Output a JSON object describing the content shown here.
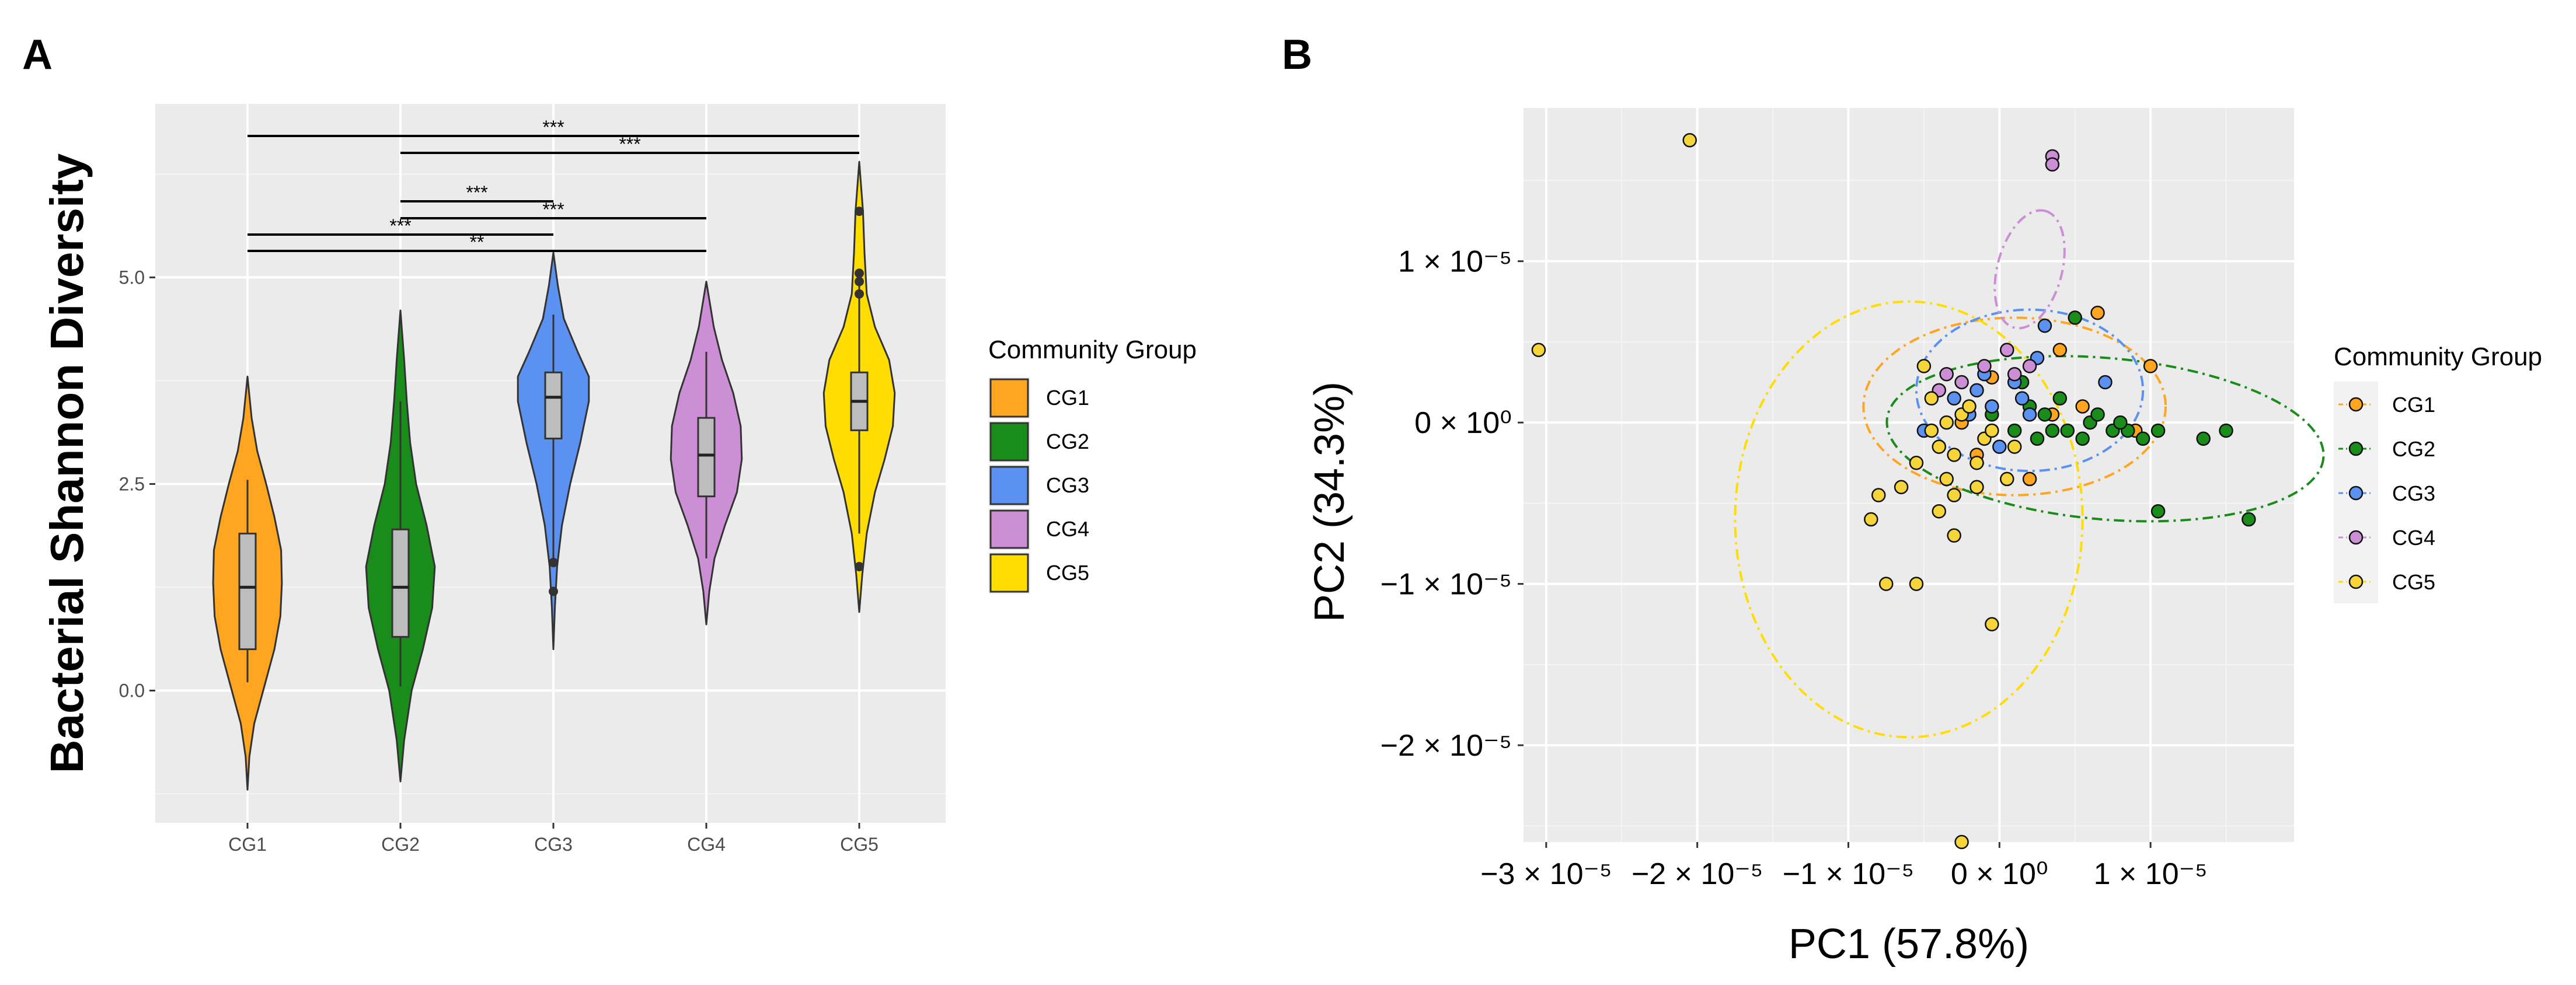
{
  "chart_data": [
    {
      "panel": "A",
      "type": "violin",
      "title": "",
      "xlabel": "",
      "ylabel": "Bacterial Shannon Diversity",
      "categories": [
        "CG1",
        "CG2",
        "CG3",
        "CG4",
        "CG5"
      ],
      "colors": [
        "#FFA51F",
        "#1A8C1A",
        "#5B91F0",
        "#CC8FD6",
        "#FFDD00"
      ],
      "ylim": [
        -1.6,
        7.1
      ],
      "yticks": [
        0.0,
        2.5,
        5.0
      ],
      "ytick_labels": [
        "0.0",
        "2.5",
        "5.0"
      ],
      "series": [
        {
          "name": "CG1",
          "box": {
            "whisker_low": 0.1,
            "q1": 0.5,
            "median": 1.25,
            "q3": 1.9,
            "whisker_high": 2.55
          },
          "outliers": [],
          "density": [
            [
              -1.2,
              0.0
            ],
            [
              -0.8,
              0.05
            ],
            [
              -0.4,
              0.18
            ],
            [
              0.0,
              0.42
            ],
            [
              0.5,
              0.72
            ],
            [
              0.9,
              0.88
            ],
            [
              1.3,
              0.92
            ],
            [
              1.7,
              0.9
            ],
            [
              2.1,
              0.72
            ],
            [
              2.5,
              0.5
            ],
            [
              2.9,
              0.26
            ],
            [
              3.3,
              0.11
            ],
            [
              3.8,
              0.0
            ]
          ]
        },
        {
          "name": "CG2",
          "box": {
            "whisker_low": 0.05,
            "q1": 0.65,
            "median": 1.25,
            "q3": 1.95,
            "whisker_high": 3.5
          },
          "outliers": [],
          "density": [
            [
              -1.1,
              0.0
            ],
            [
              -0.6,
              0.1
            ],
            [
              0.0,
              0.3
            ],
            [
              0.5,
              0.6
            ],
            [
              1.0,
              0.85
            ],
            [
              1.5,
              0.92
            ],
            [
              2.0,
              0.7
            ],
            [
              2.5,
              0.42
            ],
            [
              3.0,
              0.26
            ],
            [
              3.5,
              0.17
            ],
            [
              4.0,
              0.1
            ],
            [
              4.6,
              0.0
            ]
          ]
        },
        {
          "name": "CG3",
          "box": {
            "whisker_low": 1.6,
            "q1": 3.05,
            "median": 3.55,
            "q3": 3.85,
            "whisker_high": 4.55
          },
          "outliers": [
            1.55,
            1.2
          ],
          "density": [
            [
              0.5,
              0.0
            ],
            [
              1.0,
              0.04
            ],
            [
              1.5,
              0.1
            ],
            [
              2.0,
              0.23
            ],
            [
              2.5,
              0.45
            ],
            [
              3.0,
              0.72
            ],
            [
              3.5,
              0.95
            ],
            [
              3.8,
              0.95
            ],
            [
              4.1,
              0.65
            ],
            [
              4.5,
              0.28
            ],
            [
              4.9,
              0.12
            ],
            [
              5.3,
              0.0
            ]
          ]
        },
        {
          "name": "CG4",
          "box": {
            "whisker_low": 1.6,
            "q1": 2.35,
            "median": 2.85,
            "q3": 3.3,
            "whisker_high": 4.1
          },
          "outliers": [],
          "density": [
            [
              0.8,
              0.0
            ],
            [
              1.2,
              0.08
            ],
            [
              1.6,
              0.22
            ],
            [
              2.0,
              0.5
            ],
            [
              2.4,
              0.82
            ],
            [
              2.8,
              0.95
            ],
            [
              3.2,
              0.92
            ],
            [
              3.6,
              0.72
            ],
            [
              4.0,
              0.42
            ],
            [
              4.4,
              0.2
            ],
            [
              4.95,
              0.0
            ]
          ]
        },
        {
          "name": "CG5",
          "box": {
            "whisker_low": 1.9,
            "q1": 3.15,
            "median": 3.5,
            "q3": 3.85,
            "whisker_high": 4.9
          },
          "outliers": [
            1.5,
            4.8,
            4.95,
            5.05,
            5.8
          ],
          "density": [
            [
              0.95,
              0.0
            ],
            [
              1.4,
              0.08
            ],
            [
              1.9,
              0.2
            ],
            [
              2.4,
              0.42
            ],
            [
              2.8,
              0.68
            ],
            [
              3.2,
              0.9
            ],
            [
              3.6,
              0.95
            ],
            [
              4.0,
              0.8
            ],
            [
              4.4,
              0.42
            ],
            [
              4.8,
              0.2
            ],
            [
              5.3,
              0.14
            ],
            [
              5.8,
              0.1
            ],
            [
              6.4,
              0.0
            ]
          ]
        }
      ],
      "significance": [
        {
          "from": "CG1",
          "to": "CG5",
          "label": "***"
        },
        {
          "from": "CG2",
          "to": "CG5",
          "label": "***"
        },
        {
          "from": "CG2",
          "to": "CG3",
          "label": "***"
        },
        {
          "from": "CG2",
          "to": "CG4",
          "label": "***"
        },
        {
          "from": "CG1",
          "to": "CG3",
          "label": "***"
        },
        {
          "from": "CG1",
          "to": "CG4",
          "label": "**"
        }
      ],
      "legend": {
        "title": "Community Group",
        "position": "right",
        "entries": [
          "CG1",
          "CG2",
          "CG3",
          "CG4",
          "CG5"
        ]
      }
    },
    {
      "panel": "B",
      "type": "scatter",
      "title": "",
      "xlabel": "PC1 (57.8%)",
      "ylabel": "PC2 (34.3%)",
      "xlim": [
        -3.15,
        1.95
      ],
      "ylim": [
        -2.6,
        1.95
      ],
      "xticks": [
        -3,
        -2,
        -1,
        0,
        1
      ],
      "xtick_labels": [
        "−3 × 10⁻⁵",
        "−2 × 10⁻⁵",
        "−1 × 10⁻⁵",
        "0 × 10⁰",
        "1 × 10⁻⁵"
      ],
      "yticks": [
        -2,
        -1,
        0,
        1
      ],
      "ytick_labels": [
        "−2 × 10⁻⁵",
        "−1 × 10⁻⁵",
        "0 × 10⁰",
        "1 × 10⁻⁵"
      ],
      "units_note": "axis values in units of 1e-5",
      "ellipses": [
        {
          "group": "CG1",
          "cx": 0.1,
          "cy": 0.1,
          "rx": 1.0,
          "ry": 0.55,
          "angle": 0
        },
        {
          "group": "CG2",
          "cx": 0.7,
          "cy": -0.1,
          "rx": 1.45,
          "ry": 0.5,
          "angle": 5
        },
        {
          "group": "CG3",
          "cx": 0.2,
          "cy": 0.2,
          "rx": 0.75,
          "ry": 0.5,
          "angle": 0
        },
        {
          "group": "CG4",
          "cx": 0.2,
          "cy": 0.95,
          "rx": 0.4,
          "ry": 0.2,
          "angle": -75
        },
        {
          "group": "CG5",
          "cx": -0.6,
          "cy": -0.6,
          "rx": 1.15,
          "ry": 1.35,
          "angle": 0
        }
      ],
      "series": [
        {
          "name": "CG1",
          "points": [
            [
              0.65,
              0.68
            ],
            [
              0.4,
              0.45
            ],
            [
              -0.25,
              0.0
            ],
            [
              0.2,
              -0.35
            ],
            [
              0.9,
              -0.05
            ],
            [
              0.55,
              0.1
            ],
            [
              -0.05,
              0.28
            ],
            [
              1.0,
              0.35
            ],
            [
              0.35,
              0.05
            ],
            [
              -0.15,
              -0.2
            ]
          ]
        },
        {
          "name": "CG2",
          "points": [
            [
              0.3,
              0.05
            ],
            [
              0.45,
              -0.05
            ],
            [
              0.6,
              0.0
            ],
            [
              0.75,
              -0.05
            ],
            [
              0.85,
              -0.05
            ],
            [
              0.95,
              -0.1
            ],
            [
              1.05,
              -0.05
            ],
            [
              1.35,
              -0.1
            ],
            [
              1.5,
              -0.05
            ],
            [
              1.65,
              -0.6
            ],
            [
              1.05,
              -0.55
            ],
            [
              0.5,
              0.65
            ],
            [
              0.2,
              0.1
            ],
            [
              0.1,
              -0.05
            ],
            [
              0.4,
              0.15
            ],
            [
              0.65,
              0.05
            ],
            [
              0.25,
              -0.1
            ],
            [
              0.55,
              -0.1
            ],
            [
              0.8,
              0.0
            ],
            [
              -0.05,
              0.05
            ],
            [
              0.15,
              0.25
            ],
            [
              0.35,
              -0.05
            ]
          ]
        },
        {
          "name": "CG3",
          "points": [
            [
              0.3,
              0.6
            ],
            [
              -0.5,
              -0.05
            ],
            [
              0.7,
              0.25
            ],
            [
              0.1,
              0.25
            ],
            [
              -0.05,
              0.1
            ],
            [
              0.2,
              0.05
            ],
            [
              -0.3,
              0.15
            ],
            [
              0.0,
              -0.15
            ],
            [
              -0.1,
              0.3
            ],
            [
              -0.2,
              0.05
            ],
            [
              0.25,
              0.4
            ],
            [
              0.05,
              0.45
            ],
            [
              -0.15,
              0.2
            ],
            [
              0.15,
              0.15
            ]
          ]
        },
        {
          "name": "CG4",
          "points": [
            [
              0.35,
              1.65
            ],
            [
              0.35,
              1.6
            ],
            [
              0.05,
              0.45
            ],
            [
              -0.1,
              0.35
            ],
            [
              -0.25,
              0.25
            ],
            [
              -0.35,
              0.3
            ],
            [
              -0.4,
              0.2
            ],
            [
              0.2,
              0.35
            ],
            [
              0.1,
              0.3
            ]
          ]
        },
        {
          "name": "CG5",
          "points": [
            [
              -2.05,
              1.75
            ],
            [
              -3.05,
              0.45
            ],
            [
              -0.25,
              -2.6
            ],
            [
              -0.75,
              -1.0
            ],
            [
              -0.55,
              -1.0
            ],
            [
              -0.05,
              -1.25
            ],
            [
              -0.85,
              -0.6
            ],
            [
              -0.65,
              -0.4
            ],
            [
              -0.8,
              -0.45
            ],
            [
              -0.4,
              -0.55
            ],
            [
              -0.3,
              -0.7
            ],
            [
              -0.35,
              -0.35
            ],
            [
              -0.55,
              -0.25
            ],
            [
              -0.45,
              0.15
            ],
            [
              -0.5,
              0.35
            ],
            [
              -0.3,
              -0.2
            ],
            [
              -0.25,
              0.05
            ],
            [
              -0.1,
              -0.1
            ],
            [
              0.05,
              -0.35
            ],
            [
              -0.2,
              0.1
            ],
            [
              -0.35,
              0.0
            ],
            [
              -0.15,
              -0.4
            ],
            [
              -0.45,
              -0.05
            ],
            [
              0.1,
              -0.15
            ],
            [
              -0.3,
              -0.45
            ],
            [
              -0.15,
              -0.25
            ],
            [
              -0.4,
              -0.15
            ],
            [
              -0.05,
              -0.05
            ]
          ]
        }
      ],
      "legend": {
        "title": "Community Group",
        "position": "right",
        "entries": [
          "CG1",
          "CG2",
          "CG3",
          "CG4",
          "CG5"
        ]
      }
    }
  ],
  "panel_labels": {
    "a": "A",
    "b": "B"
  },
  "colors": {
    "CG1": "#FFA51F",
    "CG2": "#1A8C1A",
    "CG3": "#5B91F0",
    "CG4": "#CC8FD6",
    "CG5": "#FFDD00",
    "CG5_point": "#F5D53A",
    "panel_bg": "#EBEBEB",
    "grid": "#FFFFFF",
    "box_fill": "#BDBDBD"
  }
}
